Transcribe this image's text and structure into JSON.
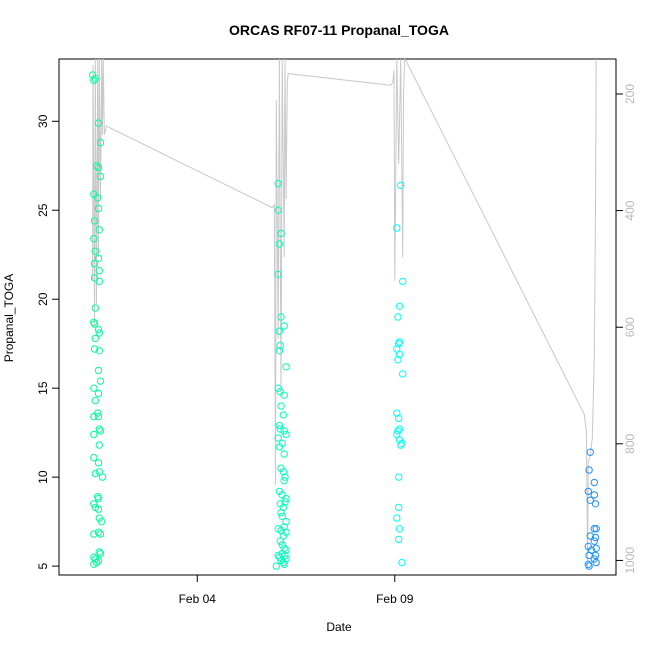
{
  "chart_data": {
    "type": "scatter",
    "title": "ORCAS RF07-11 Propanal_TOGA",
    "xlabel": "Date",
    "ylabel": "Propanal_TOGA",
    "x_ticks": [
      "Feb 04",
      "Feb 09"
    ],
    "y_ticks": [
      5,
      10,
      15,
      20,
      25,
      30
    ],
    "y_right_ticks": [
      200,
      400,
      600,
      800,
      1000
    ],
    "ylim": [
      4.5,
      33.5
    ],
    "y_right_lim": [
      1025,
      140
    ],
    "x_unit": "days since 2016-01-31",
    "xlim": [
      0.5,
      14.6
    ],
    "secondary_axis_side": "right",
    "series": [
      {
        "color": "#00FF99",
        "points": [
          [
            1.35,
            32.6
          ],
          [
            1.38,
            32.3
          ],
          [
            1.42,
            32.4
          ],
          [
            1.5,
            29.9
          ],
          [
            1.55,
            28.8
          ],
          [
            1.45,
            27.5
          ],
          [
            1.5,
            27.4
          ],
          [
            1.55,
            26.9
          ],
          [
            1.38,
            25.9
          ],
          [
            1.48,
            25.7
          ],
          [
            1.5,
            25.1
          ],
          [
            1.4,
            24.4
          ],
          [
            1.52,
            23.9
          ],
          [
            1.38,
            23.4
          ],
          [
            1.42,
            22.7
          ],
          [
            1.4,
            22.0
          ],
          [
            1.5,
            22.3
          ],
          [
            1.52,
            21.6
          ],
          [
            1.4,
            21.2
          ],
          [
            1.52,
            21.0
          ],
          [
            1.42,
            19.5
          ],
          [
            1.38,
            18.7
          ],
          [
            1.4,
            18.6
          ],
          [
            1.5,
            18.3
          ],
          [
            1.52,
            18.1
          ],
          [
            1.42,
            17.8
          ],
          [
            1.4,
            17.2
          ],
          [
            1.52,
            17.1
          ],
          [
            1.5,
            16.0
          ],
          [
            1.55,
            15.4
          ],
          [
            1.38,
            15.0
          ],
          [
            1.5,
            14.7
          ],
          [
            1.42,
            14.3
          ],
          [
            1.38,
            13.4
          ],
          [
            1.48,
            13.6
          ],
          [
            1.5,
            13.4
          ],
          [
            1.52,
            12.7
          ],
          [
            1.55,
            12.6
          ],
          [
            1.38,
            12.4
          ],
          [
            1.52,
            11.8
          ],
          [
            1.38,
            11.1
          ],
          [
            1.5,
            10.8
          ],
          [
            1.42,
            10.2
          ],
          [
            1.52,
            10.3
          ],
          [
            1.6,
            10.0
          ],
          [
            1.48,
            8.9
          ],
          [
            1.5,
            8.8
          ],
          [
            1.38,
            8.5
          ],
          [
            1.42,
            8.3
          ],
          [
            1.5,
            8.2
          ],
          [
            1.52,
            7.7
          ],
          [
            1.58,
            7.5
          ],
          [
            1.38,
            6.8
          ],
          [
            1.5,
            6.9
          ],
          [
            1.55,
            6.8
          ],
          [
            1.52,
            5.8
          ],
          [
            1.55,
            5.7
          ],
          [
            1.38,
            5.5
          ],
          [
            1.42,
            5.4
          ],
          [
            1.5,
            5.3
          ],
          [
            1.38,
            5.1
          ],
          [
            1.45,
            5.2
          ]
        ]
      },
      {
        "color": "#00FFBB",
        "points": [
          [
            6.05,
            26.5
          ],
          [
            6.05,
            25.0
          ],
          [
            6.12,
            23.7
          ],
          [
            6.08,
            23.1
          ],
          [
            6.05,
            21.4
          ],
          [
            6.12,
            19.0
          ],
          [
            6.08,
            18.2
          ],
          [
            6.2,
            18.5
          ],
          [
            6.1,
            17.4
          ],
          [
            6.08,
            17.1
          ],
          [
            6.25,
            16.2
          ],
          [
            6.05,
            15.0
          ],
          [
            6.1,
            14.8
          ],
          [
            6.2,
            14.6
          ],
          [
            6.12,
            14.0
          ],
          [
            6.18,
            13.5
          ],
          [
            6.08,
            12.9
          ],
          [
            6.1,
            12.7
          ],
          [
            6.2,
            12.6
          ],
          [
            6.25,
            12.4
          ],
          [
            6.05,
            12.2
          ],
          [
            6.15,
            11.9
          ],
          [
            6.08,
            11.7
          ],
          [
            6.2,
            11.3
          ],
          [
            6.12,
            10.5
          ],
          [
            6.18,
            10.3
          ],
          [
            6.22,
            10.0
          ],
          [
            6.2,
            9.8
          ],
          [
            6.08,
            9.2
          ],
          [
            6.15,
            9.0
          ],
          [
            6.25,
            8.8
          ],
          [
            6.22,
            8.6
          ],
          [
            6.1,
            8.5
          ],
          [
            6.18,
            8.3
          ],
          [
            6.12,
            8.0
          ],
          [
            6.15,
            7.8
          ],
          [
            6.25,
            7.5
          ],
          [
            6.2,
            7.2
          ],
          [
            6.05,
            7.1
          ],
          [
            6.12,
            7.0
          ],
          [
            6.25,
            6.9
          ],
          [
            6.18,
            6.7
          ],
          [
            6.1,
            6.4
          ],
          [
            6.15,
            6.2
          ],
          [
            6.2,
            6.0
          ],
          [
            6.25,
            5.9
          ],
          [
            6.05,
            5.6
          ],
          [
            6.08,
            5.5
          ],
          [
            6.15,
            5.7
          ],
          [
            6.22,
            5.6
          ],
          [
            6.12,
            5.3
          ],
          [
            6.18,
            5.2
          ],
          [
            6.25,
            5.4
          ],
          [
            6.0,
            5.0
          ],
          [
            6.2,
            5.1
          ]
        ]
      },
      {
        "color": "#00FFFF",
        "points": [
          [
            9.15,
            26.4
          ],
          [
            9.05,
            24.0
          ],
          [
            9.2,
            21.0
          ],
          [
            9.12,
            19.6
          ],
          [
            9.08,
            19.0
          ],
          [
            9.12,
            17.6
          ],
          [
            9.1,
            17.5
          ],
          [
            9.05,
            17.2
          ],
          [
            9.12,
            16.9
          ],
          [
            9.08,
            16.6
          ],
          [
            9.2,
            15.8
          ],
          [
            9.05,
            13.6
          ],
          [
            9.1,
            13.3
          ],
          [
            9.12,
            12.7
          ],
          [
            9.08,
            12.6
          ],
          [
            9.05,
            12.4
          ],
          [
            9.12,
            12.1
          ],
          [
            9.18,
            11.9
          ],
          [
            9.15,
            11.8
          ],
          [
            9.1,
            10.0
          ],
          [
            9.1,
            8.3
          ],
          [
            9.05,
            7.7
          ],
          [
            9.12,
            7.1
          ],
          [
            9.1,
            6.5
          ],
          [
            9.18,
            5.2
          ]
        ]
      },
      {
        "color": "#1E90FF",
        "points": [
          [
            13.95,
            11.4
          ],
          [
            13.92,
            10.4
          ],
          [
            14.05,
            9.7
          ],
          [
            13.9,
            9.2
          ],
          [
            14.05,
            9.0
          ],
          [
            13.95,
            8.7
          ],
          [
            14.08,
            8.5
          ],
          [
            14.05,
            7.1
          ],
          [
            14.1,
            7.1
          ],
          [
            13.95,
            6.7
          ],
          [
            14.08,
            6.6
          ],
          [
            14.05,
            6.4
          ],
          [
            13.9,
            6.1
          ],
          [
            13.98,
            5.9
          ],
          [
            14.1,
            6.0
          ],
          [
            13.92,
            5.6
          ],
          [
            14.05,
            5.4
          ],
          [
            14.08,
            5.6
          ],
          [
            13.9,
            5.1
          ],
          [
            14.1,
            5.2
          ],
          [
            13.92,
            5.0
          ]
        ]
      }
    ],
    "altitude_line": {
      "color": "#c8c8c8",
      "points": [
        [
          1.35,
          520
        ],
        [
          1.36,
          150
        ],
        [
          1.4,
          600
        ],
        [
          1.42,
          140
        ],
        [
          1.45,
          560
        ],
        [
          1.48,
          140
        ],
        [
          1.5,
          480
        ],
        [
          1.52,
          140
        ],
        [
          1.55,
          380
        ],
        [
          1.58,
          140
        ],
        [
          1.6,
          270
        ],
        [
          1.62,
          140
        ],
        [
          1.65,
          270
        ],
        [
          1.7,
          255
        ],
        [
          5.9,
          395
        ],
        [
          5.95,
          390
        ],
        [
          5.98,
          870
        ],
        [
          6.0,
          210
        ],
        [
          6.05,
          620
        ],
        [
          6.08,
          140
        ],
        [
          6.12,
          720
        ],
        [
          6.15,
          140
        ],
        [
          6.2,
          480
        ],
        [
          6.22,
          140
        ],
        [
          6.25,
          380
        ],
        [
          6.28,
          180
        ],
        [
          6.3,
          165
        ],
        [
          8.9,
          185
        ],
        [
          8.95,
          180
        ],
        [
          8.98,
          160
        ],
        [
          9.0,
          520
        ],
        [
          9.05,
          140
        ],
        [
          9.1,
          320
        ],
        [
          9.15,
          140
        ],
        [
          9.2,
          480
        ],
        [
          9.22,
          200
        ],
        [
          9.25,
          140
        ],
        [
          9.3,
          145
        ],
        [
          13.8,
          750
        ],
        [
          13.85,
          780
        ],
        [
          13.88,
          1010
        ],
        [
          13.9,
          830
        ],
        [
          13.95,
          820
        ],
        [
          14.0,
          790
        ],
        [
          14.05,
          650
        ],
        [
          14.08,
          400
        ],
        [
          14.1,
          140
        ]
      ]
    }
  }
}
